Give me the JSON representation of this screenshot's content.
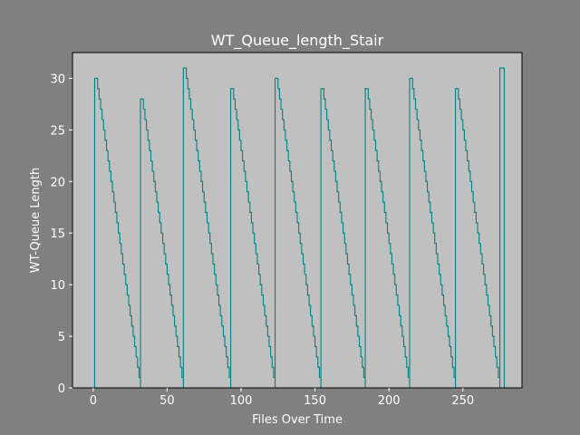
{
  "chart_data": {
    "type": "line",
    "title": "WT_Queue_length_Stair",
    "xlabel": "Files Over Time",
    "ylabel": "WT-Queue Length",
    "xlim": [
      -14,
      290
    ],
    "ylim": [
      0,
      32.5
    ],
    "xticks": [
      0,
      50,
      100,
      150,
      200,
      250
    ],
    "yticks": [
      0,
      5,
      10,
      15,
      20,
      25,
      30
    ],
    "grid": false,
    "drawstyle": "steps-post",
    "colors": {
      "figure_bg": "#808080",
      "axes_bg": "#c0c0c0",
      "line": "#008080",
      "text": "#ffffff"
    },
    "cycles": [
      {
        "start": 1,
        "end": 32,
        "peak": 30
      },
      {
        "start": 32,
        "end": 61,
        "peak": 28
      },
      {
        "start": 61,
        "end": 93,
        "peak": 31
      },
      {
        "start": 93,
        "end": 123,
        "peak": 29
      },
      {
        "start": 123,
        "end": 154,
        "peak": 30
      },
      {
        "start": 154,
        "end": 184,
        "peak": 29
      },
      {
        "start": 184,
        "end": 214,
        "peak": 29
      },
      {
        "start": 214,
        "end": 245,
        "peak": 30
      },
      {
        "start": 245,
        "end": 275,
        "peak": 29
      },
      {
        "start": 275,
        "end": 278,
        "peak": 31
      }
    ]
  }
}
